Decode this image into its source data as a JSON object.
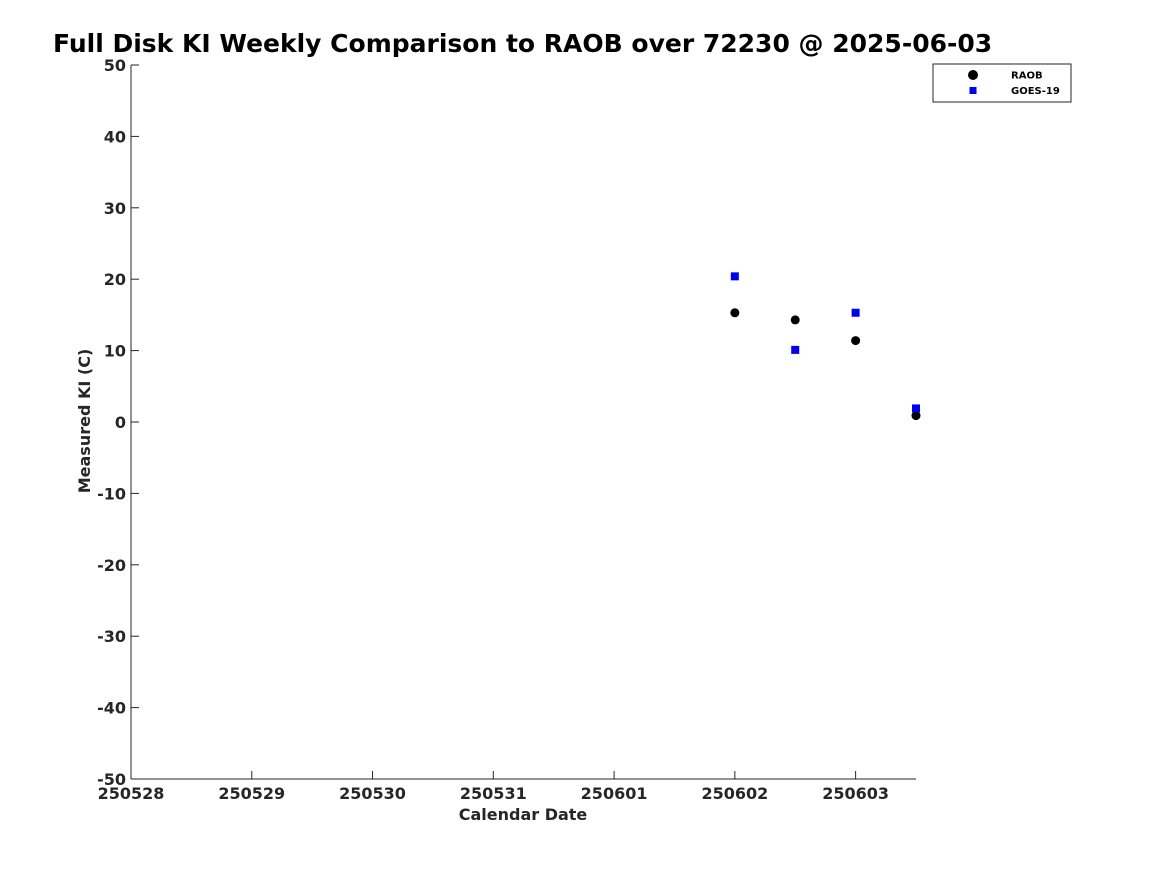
{
  "chart_data": {
    "type": "scatter",
    "title": "Full Disk KI Weekly Comparison to RAOB over 72230 @ 2025-06-03",
    "xlabel": "Calendar Date",
    "ylabel": "Measured KI (C)",
    "xlim": [
      0,
      6.5
    ],
    "ylim": [
      -50,
      50
    ],
    "x_ticks": [
      {
        "value": 0,
        "label": "250528"
      },
      {
        "value": 1,
        "label": "250529"
      },
      {
        "value": 2,
        "label": "250530"
      },
      {
        "value": 3,
        "label": "250531"
      },
      {
        "value": 4,
        "label": "250601"
      },
      {
        "value": 5,
        "label": "250602"
      },
      {
        "value": 6,
        "label": "250603"
      }
    ],
    "y_ticks": [
      -50,
      -40,
      -30,
      -20,
      -10,
      0,
      10,
      20,
      30,
      40,
      50
    ],
    "grid": false,
    "legend_position": "top-right",
    "series": [
      {
        "name": "RAOB",
        "marker": "circle",
        "color": "#000000",
        "x": [
          5.0,
          5.5,
          6.0,
          6.5
        ],
        "y": [
          15.3,
          14.3,
          11.4,
          0.9
        ]
      },
      {
        "name": "GOES-19",
        "marker": "square",
        "color": "#0000ee",
        "x": [
          5.0,
          5.5,
          6.0,
          6.5
        ],
        "y": [
          20.4,
          10.1,
          15.3,
          1.9
        ]
      }
    ]
  }
}
